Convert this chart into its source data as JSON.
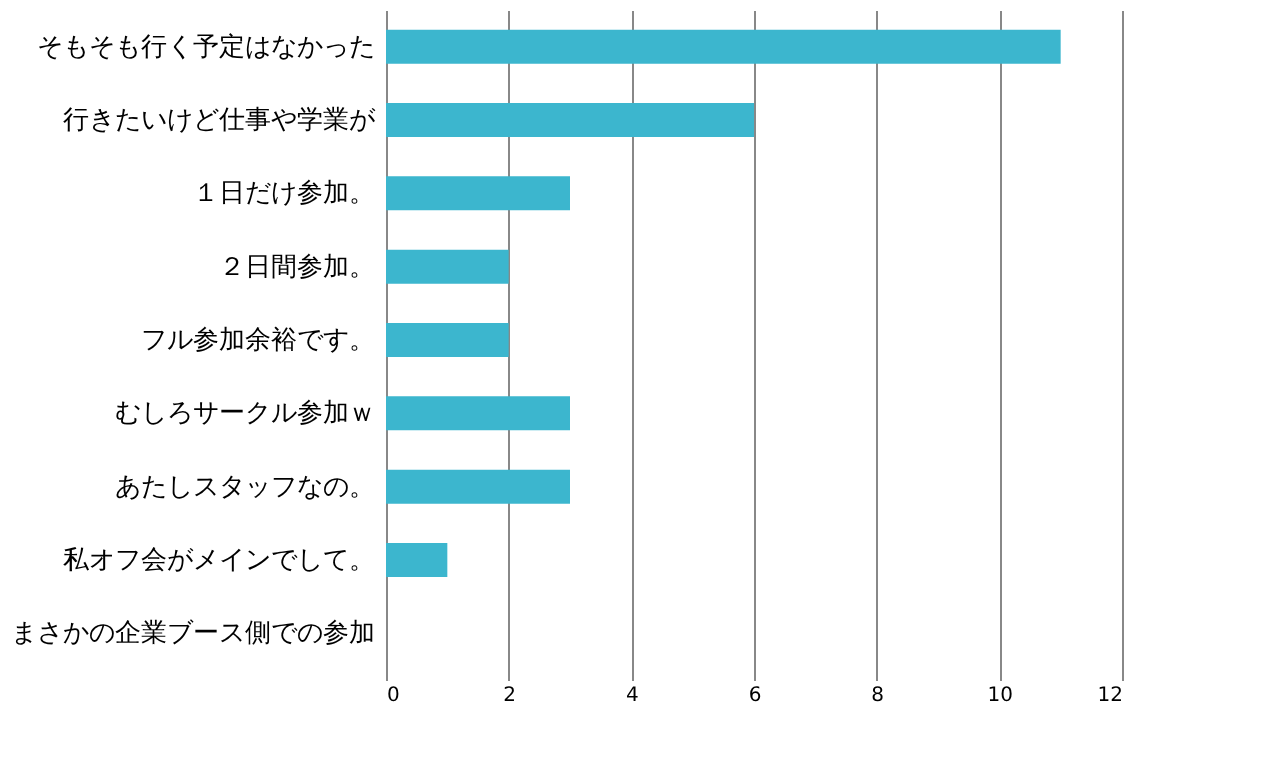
{
  "chart_data": {
    "type": "bar",
    "orientation": "horizontal",
    "categories": [
      "そもそも行く予定はなかった",
      "行きたいけど仕事や学業が",
      "１日だけ参加。",
      "２日間参加。",
      "フル参加余裕です。",
      "むしろサークル参加ｗ",
      "あたしスタッフなの。",
      "私オフ会がメインでして。",
      "まさかの企業ブース側での参加"
    ],
    "values": [
      11,
      6,
      3,
      2,
      2,
      3,
      3,
      1,
      0
    ],
    "color": "#3cb6ce",
    "xlim": [
      0,
      12
    ],
    "xticks": [
      0,
      2,
      4,
      6,
      8,
      10,
      12
    ],
    "grid": "x"
  }
}
